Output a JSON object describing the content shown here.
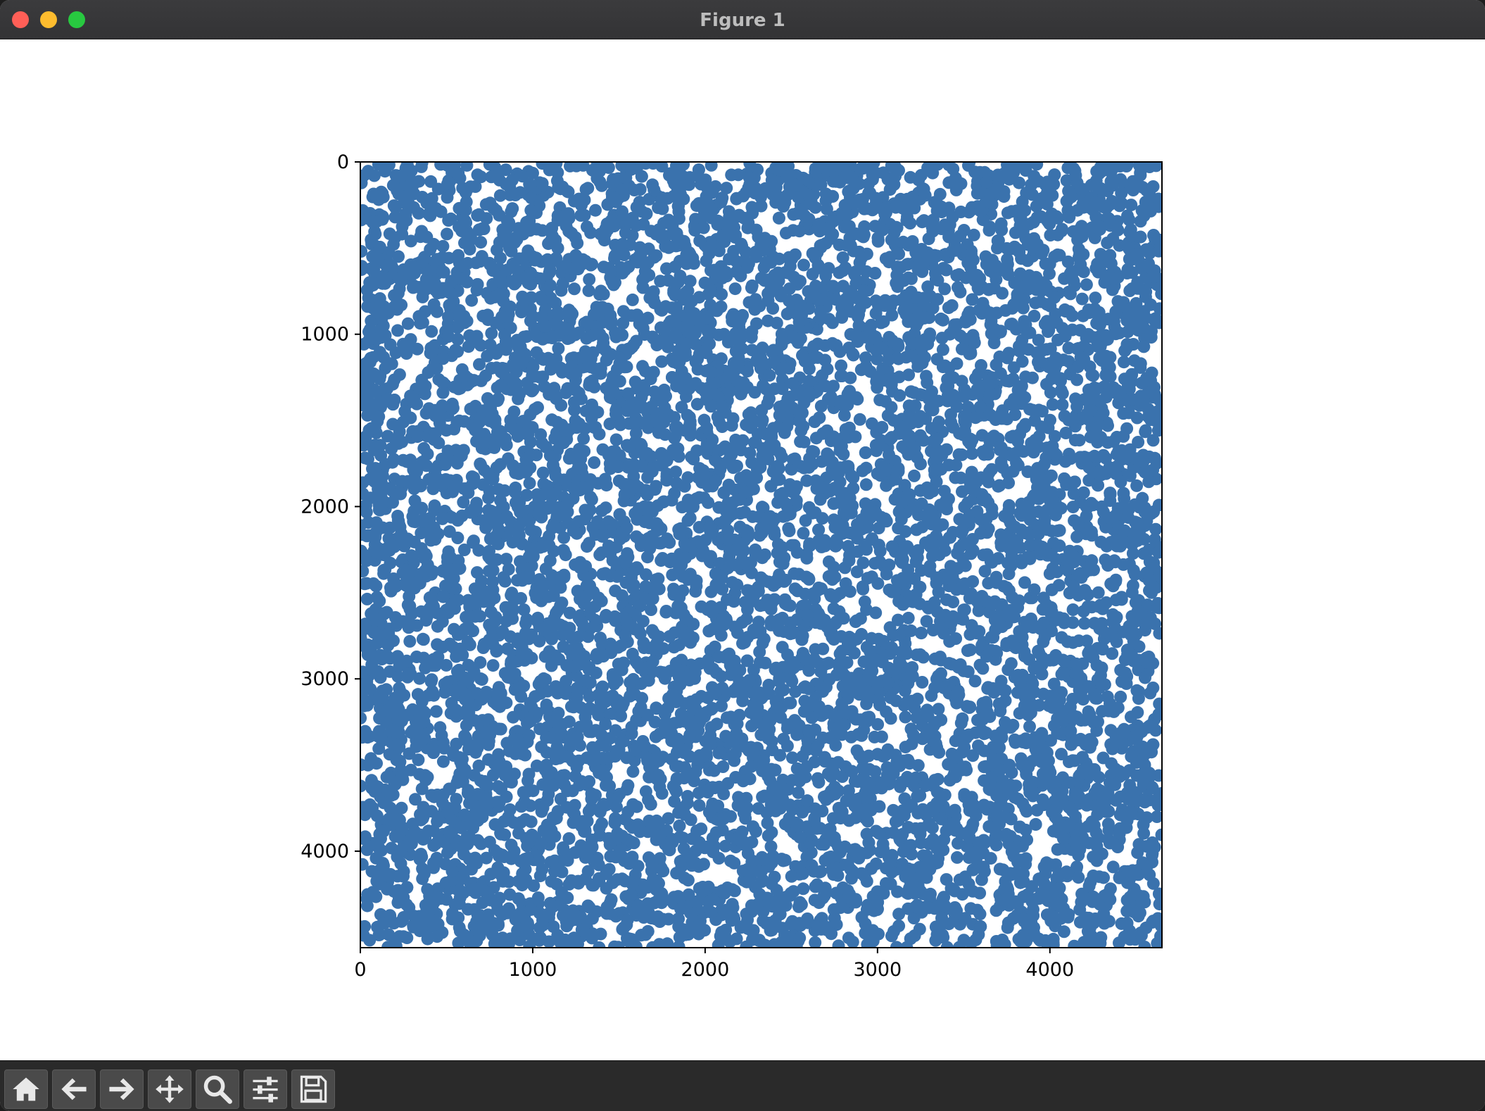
{
  "window": {
    "title": "Figure 1"
  },
  "toolbar": {
    "buttons": [
      {
        "icon": "home-icon",
        "name": "home-button"
      },
      {
        "icon": "back-icon",
        "name": "back-button"
      },
      {
        "icon": "forward-icon",
        "name": "forward-button"
      },
      {
        "icon": "pan-icon",
        "name": "pan-button"
      },
      {
        "icon": "zoom-icon",
        "name": "zoom-button"
      },
      {
        "icon": "configure-subplots-icon",
        "name": "configure-subplots-button"
      },
      {
        "icon": "save-icon",
        "name": "save-button"
      }
    ]
  },
  "chart_data": {
    "type": "scatter",
    "title": "",
    "xlabel": "",
    "ylabel": "",
    "xlim": [
      0,
      4650
    ],
    "ylim": [
      4560,
      0
    ],
    "y_inverted": true,
    "x_ticks": [
      "0",
      "1000",
      "2000",
      "3000",
      "4000"
    ],
    "y_ticks": [
      "0",
      "1000",
      "2000",
      "3000",
      "4000"
    ],
    "marker_color": "#3a72ad",
    "grid": false,
    "legend": "none",
    "points_note_count": 9000
  }
}
